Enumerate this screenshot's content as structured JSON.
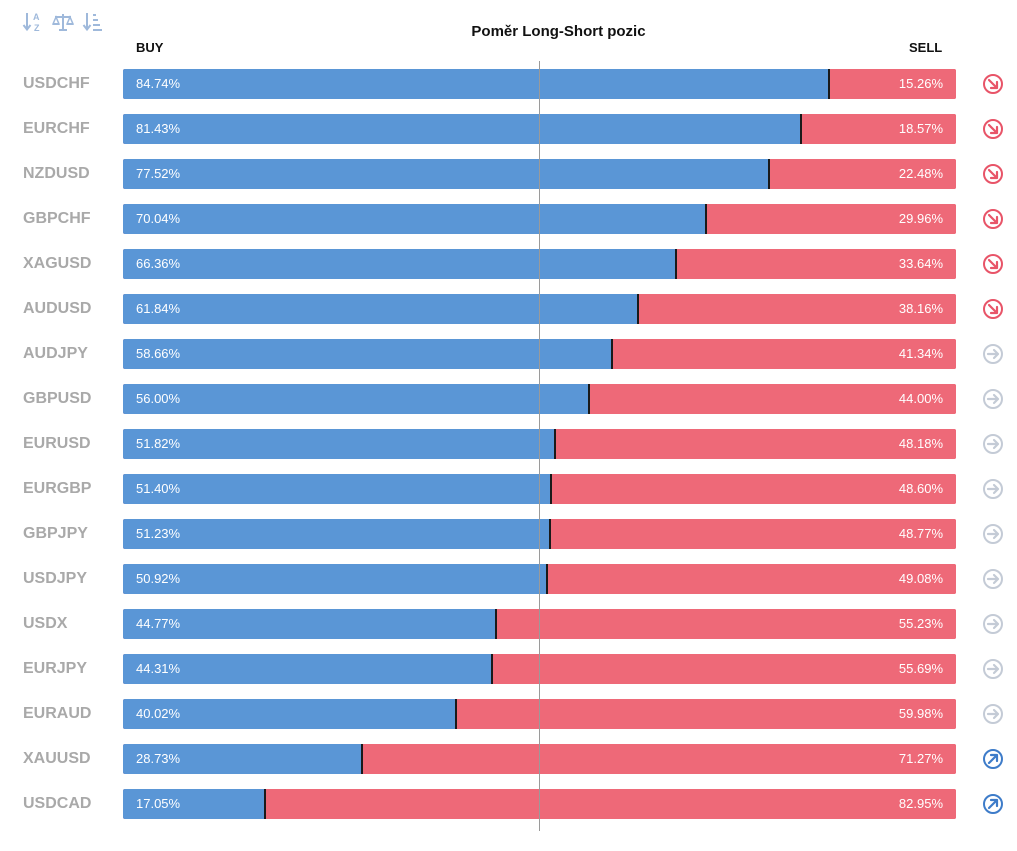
{
  "toolbar": {
    "icons": [
      "sort-alpha-icon",
      "balance-scale-icon",
      "sort-amount-icon"
    ]
  },
  "colors": {
    "buy": "#5a96d6",
    "sell": "#ee6978",
    "trend_down": "#e85468",
    "trend_neutral": "#c4cbd6",
    "trend_up": "#3e7cc9",
    "symbol": "#a9a9a9"
  },
  "chart_data": {
    "type": "bar",
    "title": "Poměr Long-Short pozic",
    "buy_label": "BUY",
    "sell_label": "SELL",
    "stacked": true,
    "orientation": "horizontal",
    "ylim": [
      0,
      100
    ],
    "categories": [
      "USDCHF",
      "EURCHF",
      "NZDUSD",
      "GBPCHF",
      "XAGUSD",
      "AUDUSD",
      "AUDJPY",
      "GBPUSD",
      "EURUSD",
      "EURGBP",
      "GBPJPY",
      "USDJPY",
      "USDX",
      "EURJPY",
      "EURAUD",
      "XAUUSD",
      "USDCAD"
    ],
    "series": [
      {
        "name": "BUY",
        "values": [
          84.74,
          81.43,
          77.52,
          70.04,
          66.36,
          61.84,
          58.66,
          56.0,
          51.82,
          51.4,
          51.23,
          50.92,
          44.77,
          44.31,
          40.02,
          28.73,
          17.05
        ]
      },
      {
        "name": "SELL",
        "values": [
          15.26,
          18.57,
          22.48,
          29.96,
          33.64,
          38.16,
          41.34,
          44.0,
          48.18,
          48.6,
          48.77,
          49.08,
          55.23,
          55.69,
          59.98,
          71.27,
          82.95
        ]
      }
    ],
    "buy_text": [
      "84.74%",
      "81.43%",
      "77.52%",
      "70.04%",
      "66.36%",
      "61.84%",
      "58.66%",
      "56.00%",
      "51.82%",
      "51.40%",
      "51.23%",
      "50.92%",
      "44.77%",
      "44.31%",
      "40.02%",
      "28.73%",
      "17.05%"
    ],
    "sell_text": [
      "15.26%",
      "18.57%",
      "22.48%",
      "29.96%",
      "33.64%",
      "38.16%",
      "41.34%",
      "44.00%",
      "48.18%",
      "48.60%",
      "48.77%",
      "49.08%",
      "55.23%",
      "55.69%",
      "59.98%",
      "71.27%",
      "82.95%"
    ],
    "trend": [
      "down",
      "down",
      "down",
      "down",
      "down",
      "down",
      "neutral",
      "neutral",
      "neutral",
      "neutral",
      "neutral",
      "neutral",
      "neutral",
      "neutral",
      "neutral",
      "up",
      "up"
    ]
  }
}
